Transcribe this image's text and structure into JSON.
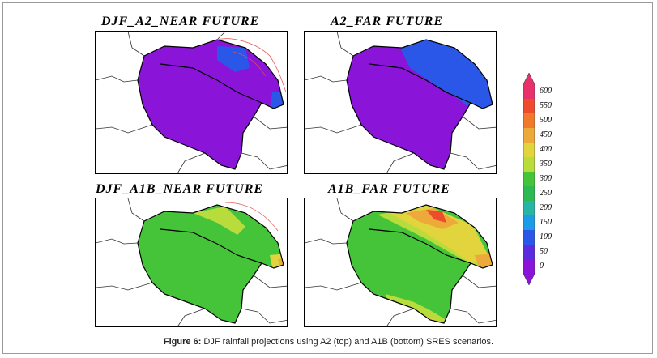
{
  "panels": [
    {
      "title": "DJF_A2_NEAR FUTURE"
    },
    {
      "title": "A2_FAR FUTURE"
    },
    {
      "title": "DJF_A1B_NEAR FUTURE"
    },
    {
      "title": "A1B_FAR FUTURE"
    }
  ],
  "colorbar": {
    "labels": [
      "600",
      "550",
      "500",
      "450",
      "400",
      "350",
      "300",
      "250",
      "200",
      "150",
      "100",
      "50",
      "0"
    ],
    "colors": [
      "#e8306a",
      "#ef4b2f",
      "#f07a2a",
      "#eda93a",
      "#e2d43c",
      "#b7dc3c",
      "#45c43a",
      "#2cb852",
      "#27b6a6",
      "#1d9be6",
      "#2b57e8",
      "#5b2be0",
      "#8a14d8"
    ]
  },
  "caption": {
    "label": "Figure 6:",
    "text": " DJF rainfall projections using A2 (top) and A1B (bottom) SRES scenarios."
  },
  "colors": {
    "purple": "#8a14d8",
    "blue": "#2b57e8",
    "green": "#45c43a",
    "light_green": "#b7dc3c",
    "yellow": "#e2d43c",
    "orange": "#eda93a",
    "red_orange": "#ef4b2f"
  }
}
